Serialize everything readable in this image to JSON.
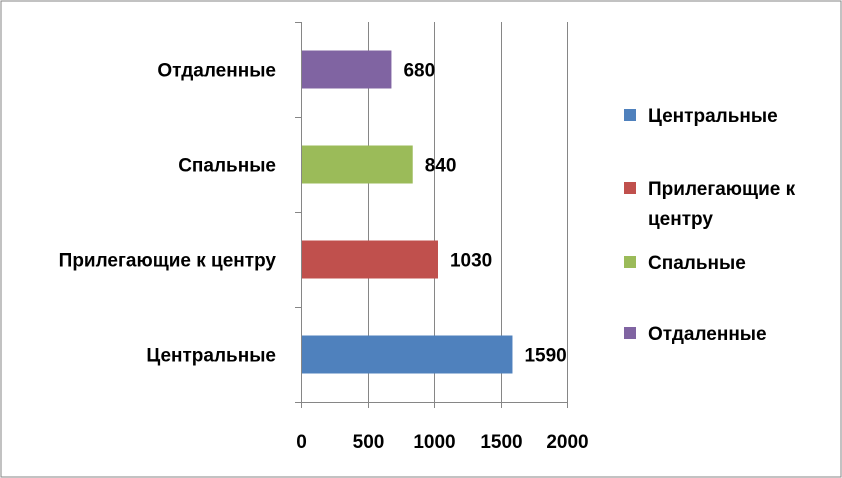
{
  "chart_data": {
    "type": "bar",
    "orientation": "horizontal",
    "categories": [
      "Центральные",
      "Прилегающие к центру",
      "Спальные",
      "Отдаленные"
    ],
    "values": [
      1590,
      1030,
      840,
      680
    ],
    "colors": [
      "#4f81bd",
      "#c0504d",
      "#9bbb59",
      "#8064a2"
    ],
    "xlim": [
      0,
      2000
    ],
    "xticks": [
      0,
      500,
      1000,
      1500,
      2000
    ],
    "grid": true,
    "legend_placement": "right",
    "legend": [
      {
        "label": "Центральные",
        "lines": [
          "Центральные"
        ],
        "color": "#4f81bd"
      },
      {
        "label": "Прилегающие к центру",
        "lines": [
          "Прилегающие к",
          "центру"
        ],
        "color": "#c0504d"
      },
      {
        "label": "Спальные",
        "lines": [
          "Спальные"
        ],
        "color": "#9bbb59"
      },
      {
        "label": "Отдаленные",
        "lines": [
          "Отдаленные"
        ],
        "color": "#8064a2"
      }
    ]
  }
}
